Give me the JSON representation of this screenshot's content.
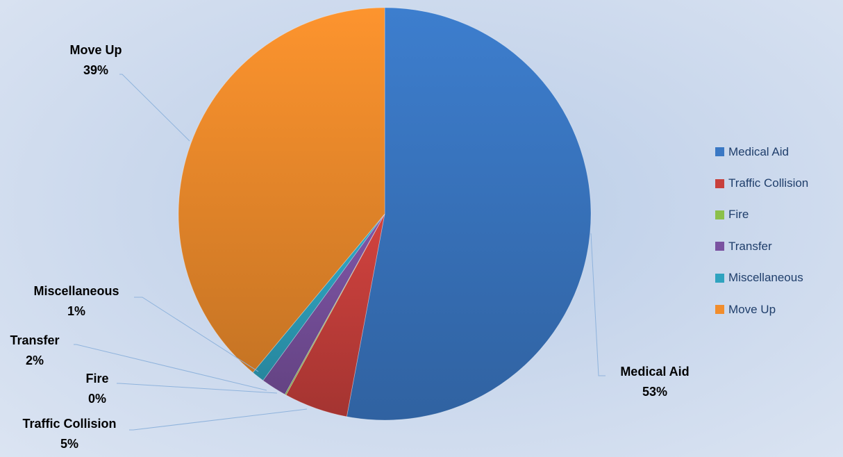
{
  "chart_data": {
    "type": "pie",
    "title": "",
    "legend_position": "right",
    "slices": [
      {
        "label": "Medical Aid",
        "value": 53,
        "value_label": "53%",
        "color": "#3a78c4"
      },
      {
        "label": "Traffic Collision",
        "value": 5,
        "value_label": "5%",
        "color": "#c8403c"
      },
      {
        "label": "Fire",
        "value": 0.1,
        "value_label": "0%",
        "color": "#8cc04a"
      },
      {
        "label": "Transfer",
        "value": 2,
        "value_label": "2%",
        "color": "#7a52a0"
      },
      {
        "label": "Miscellaneous",
        "value": 1,
        "value_label": "1%",
        "color": "#2fa3bf"
      },
      {
        "label": "Move Up",
        "value": 39,
        "value_label": "39%",
        "color": "#f18d2c"
      }
    ]
  }
}
